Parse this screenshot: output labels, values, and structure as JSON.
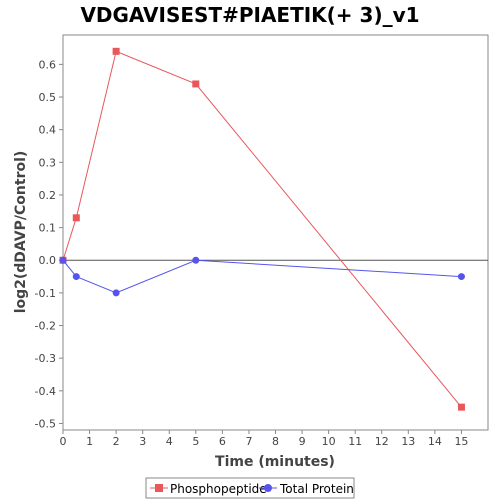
{
  "chart_data": {
    "type": "line",
    "title": "VDGAVISEST#PIAETIK(+ 3)_v1",
    "xlabel": "Time (minutes)",
    "ylabel": "log2(dDAVP/Control)",
    "xlim": [
      0,
      16
    ],
    "ylim": [
      -0.52,
      0.69
    ],
    "x_ticks": [
      0,
      1,
      2,
      3,
      4,
      5,
      6,
      7,
      8,
      9,
      10,
      11,
      12,
      13,
      14,
      15
    ],
    "y_ticks": [
      -0.5,
      -0.4,
      -0.3,
      -0.2,
      -0.1,
      0.0,
      0.1,
      0.2,
      0.3,
      0.4,
      0.5,
      0.6
    ],
    "y_tick_labels": [
      "-0.5",
      "-0.4",
      "-0.3",
      "-0.2",
      "-0.1",
      "0.0",
      "0.1",
      "0.2",
      "0.3",
      "0.4",
      "0.5",
      "0.6"
    ],
    "zero_line": true,
    "grid": false,
    "legend_position": "bottom",
    "series": [
      {
        "name": "Phosphopeptide",
        "color": "#e8575a",
        "marker": "square",
        "x": [
          0,
          0.5,
          2,
          5,
          15
        ],
        "y": [
          0.0,
          0.13,
          0.64,
          0.54,
          -0.45
        ]
      },
      {
        "name": "Total Protein",
        "color": "#5555ee",
        "marker": "circle",
        "x": [
          0,
          0.5,
          2,
          5,
          15
        ],
        "y": [
          0.0,
          -0.05,
          -0.1,
          0.0,
          -0.05
        ]
      }
    ]
  }
}
